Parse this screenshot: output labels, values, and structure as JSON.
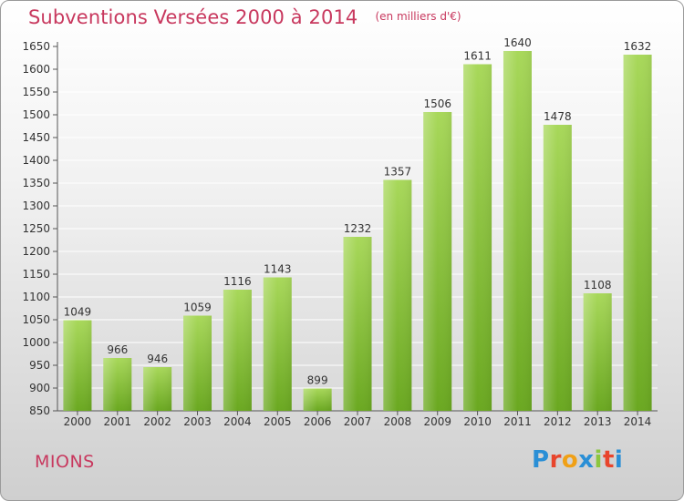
{
  "header": {
    "title": "Subventions Versées 2000 à 2014",
    "subtitle": "(en milliers d'€)"
  },
  "footer": {
    "city": "MIONS",
    "logo_text": "Proxiti"
  },
  "colors": {
    "title": "#c8385e",
    "bar_light": "#a8d85a",
    "bar_dark": "#6aa820",
    "grid": "#ffffff"
  },
  "chart_data": {
    "type": "bar",
    "title": "Subventions Versées 2000 à 2014",
    "subtitle": "(en milliers d'€)",
    "xlabel": "",
    "ylabel": "",
    "categories": [
      "2000",
      "2001",
      "2002",
      "2003",
      "2004",
      "2005",
      "2006",
      "2007",
      "2008",
      "2009",
      "2010",
      "2011",
      "2012",
      "2013",
      "2014"
    ],
    "values": [
      1049,
      966,
      946,
      1059,
      1116,
      1143,
      899,
      1232,
      1357,
      1506,
      1611,
      1640,
      1478,
      1108,
      1632
    ],
    "ylim": [
      850,
      1650
    ],
    "ytick_step": 50,
    "grid": true,
    "data_labels": true
  }
}
